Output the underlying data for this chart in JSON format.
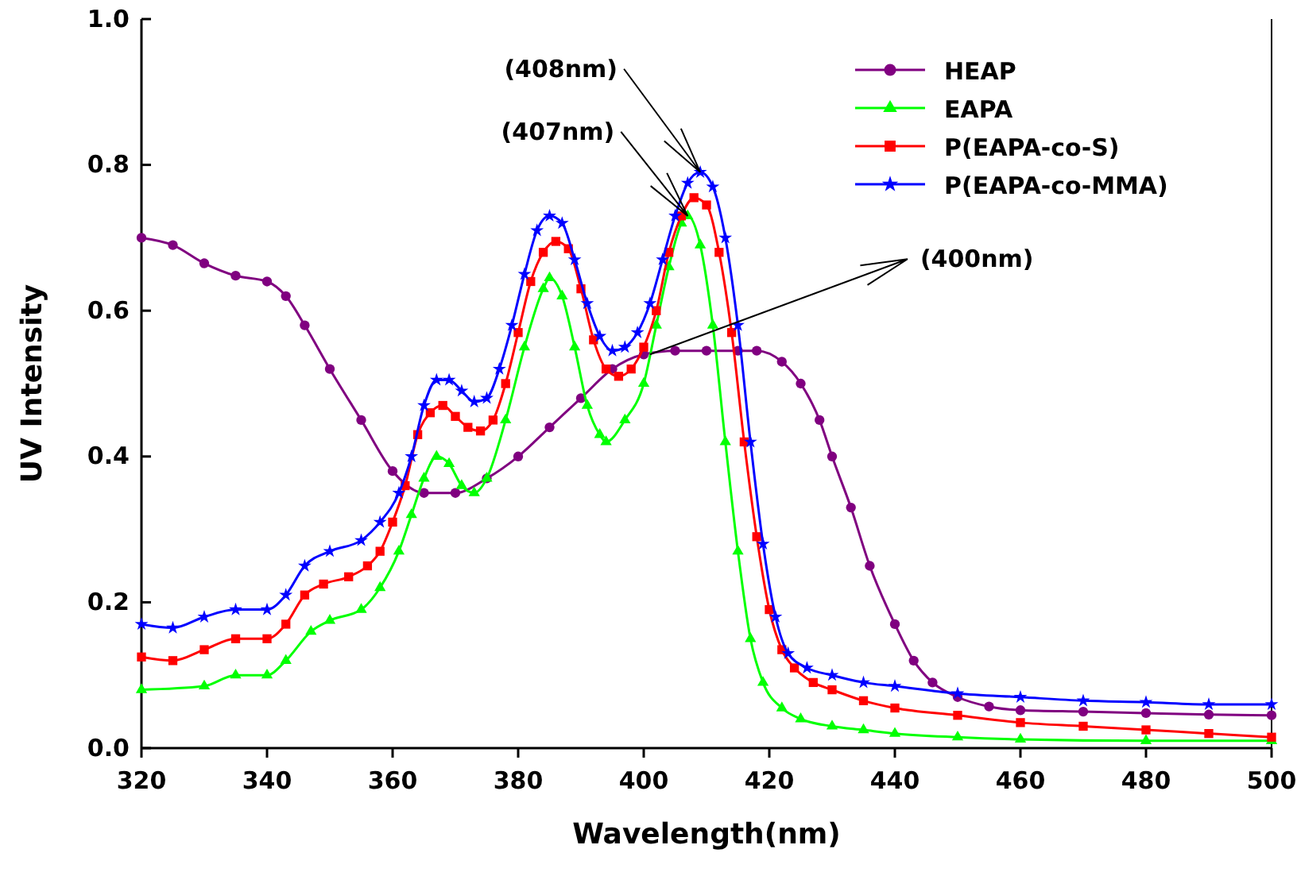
{
  "chart_data": {
    "type": "line",
    "xlabel": "Wavelength(nm)",
    "ylabel": "UV Intensity",
    "xlim": [
      320,
      500
    ],
    "xticks": [
      320,
      340,
      360,
      380,
      400,
      420,
      440,
      460,
      480,
      500
    ],
    "ylim": [
      0,
      1
    ],
    "yticks": [
      {
        "value": 0,
        "label": "0.0"
      },
      {
        "value": 0.2,
        "label": "0.2"
      },
      {
        "value": 0.4,
        "label": "0.4"
      },
      {
        "value": 0.6,
        "label": "0.6"
      },
      {
        "value": 0.8,
        "label": "0.8"
      },
      {
        "value": 1,
        "label": "1.0"
      }
    ],
    "grid": false,
    "legend": "top right",
    "line_style": "solid",
    "annotations": [
      {
        "text": "(408nm)",
        "x": 409,
        "y": 0.79
      },
      {
        "text": "(407nm)",
        "x": 407,
        "y": 0.73
      },
      {
        "text": "(400nm)",
        "x": 401,
        "y": 0.54
      }
    ],
    "series": [
      {
        "name": "HEAP",
        "color": "#800080",
        "marker": "circle",
        "x": [
          320,
          325,
          330,
          335,
          340,
          343,
          346,
          350,
          355,
          360,
          365,
          370,
          375,
          380,
          385,
          390,
          395,
          400,
          405,
          410,
          415,
          418,
          422,
          425,
          428,
          430,
          433,
          436,
          440,
          443,
          446,
          450,
          455,
          460,
          470,
          480,
          490,
          500
        ],
        "values": [
          0.7,
          0.69,
          0.665,
          0.648,
          0.64,
          0.62,
          0.58,
          0.52,
          0.45,
          0.38,
          0.35,
          0.35,
          0.37,
          0.4,
          0.44,
          0.48,
          0.52,
          0.54,
          0.545,
          0.545,
          0.545,
          0.545,
          0.53,
          0.5,
          0.45,
          0.4,
          0.33,
          0.25,
          0.17,
          0.12,
          0.09,
          0.07,
          0.057,
          0.052,
          0.05,
          0.048,
          0.046,
          0.045
        ]
      },
      {
        "name": "EAPA",
        "color": "#00ff00",
        "marker": "triangle",
        "x": [
          320,
          330,
          335,
          340,
          343,
          347,
          350,
          355,
          358,
          361,
          363,
          365,
          367,
          369,
          371,
          373,
          375,
          378,
          381,
          384,
          385,
          387,
          389,
          391,
          393,
          394,
          397,
          400,
          402,
          404,
          406,
          407,
          409,
          411,
          413,
          415,
          417,
          419,
          422,
          425,
          430,
          435,
          440,
          450,
          460,
          480,
          500
        ],
        "values": [
          0.08,
          0.085,
          0.1,
          0.1,
          0.12,
          0.16,
          0.175,
          0.19,
          0.22,
          0.27,
          0.32,
          0.37,
          0.4,
          0.39,
          0.36,
          0.35,
          0.37,
          0.45,
          0.55,
          0.63,
          0.645,
          0.62,
          0.55,
          0.47,
          0.43,
          0.42,
          0.45,
          0.5,
          0.58,
          0.66,
          0.72,
          0.73,
          0.69,
          0.58,
          0.42,
          0.27,
          0.15,
          0.09,
          0.055,
          0.04,
          0.03,
          0.025,
          0.02,
          0.015,
          0.012,
          0.01,
          0.01
        ]
      },
      {
        "name": "P(EAPA-co-S)",
        "color": "#ff0000",
        "marker": "square",
        "x": [
          320,
          325,
          330,
          335,
          340,
          343,
          346,
          349,
          353,
          356,
          358,
          360,
          362,
          364,
          366,
          368,
          370,
          372,
          374,
          376,
          378,
          380,
          382,
          384,
          386,
          388,
          390,
          392,
          394,
          396,
          398,
          400,
          402,
          404,
          406,
          408,
          410,
          412,
          414,
          416,
          418,
          420,
          422,
          424,
          427,
          430,
          435,
          440,
          450,
          460,
          470,
          480,
          490,
          500
        ],
        "values": [
          0.125,
          0.12,
          0.135,
          0.15,
          0.15,
          0.17,
          0.21,
          0.225,
          0.235,
          0.25,
          0.27,
          0.31,
          0.36,
          0.43,
          0.46,
          0.47,
          0.455,
          0.44,
          0.435,
          0.45,
          0.5,
          0.57,
          0.64,
          0.68,
          0.695,
          0.685,
          0.63,
          0.56,
          0.52,
          0.51,
          0.52,
          0.55,
          0.6,
          0.68,
          0.73,
          0.755,
          0.745,
          0.68,
          0.57,
          0.42,
          0.29,
          0.19,
          0.135,
          0.11,
          0.09,
          0.08,
          0.065,
          0.055,
          0.045,
          0.035,
          0.03,
          0.025,
          0.02,
          0.015
        ]
      },
      {
        "name": "P(EAPA-co-MMA)",
        "color": "#0000ff",
        "marker": "star",
        "x": [
          320,
          325,
          330,
          335,
          340,
          343,
          346,
          350,
          355,
          358,
          361,
          363,
          365,
          367,
          369,
          371,
          373,
          375,
          377,
          379,
          381,
          383,
          385,
          387,
          389,
          391,
          393,
          395,
          397,
          399,
          401,
          403,
          405,
          407,
          409,
          411,
          413,
          415,
          417,
          419,
          421,
          423,
          426,
          430,
          435,
          440,
          450,
          460,
          470,
          480,
          490,
          500
        ],
        "values": [
          0.17,
          0.165,
          0.18,
          0.19,
          0.19,
          0.21,
          0.25,
          0.27,
          0.285,
          0.31,
          0.35,
          0.4,
          0.47,
          0.505,
          0.505,
          0.49,
          0.475,
          0.48,
          0.52,
          0.58,
          0.65,
          0.71,
          0.73,
          0.72,
          0.67,
          0.61,
          0.565,
          0.545,
          0.55,
          0.57,
          0.61,
          0.67,
          0.73,
          0.775,
          0.79,
          0.77,
          0.7,
          0.58,
          0.42,
          0.28,
          0.18,
          0.13,
          0.11,
          0.1,
          0.09,
          0.085,
          0.075,
          0.07,
          0.065,
          0.063,
          0.06,
          0.06
        ]
      }
    ]
  }
}
